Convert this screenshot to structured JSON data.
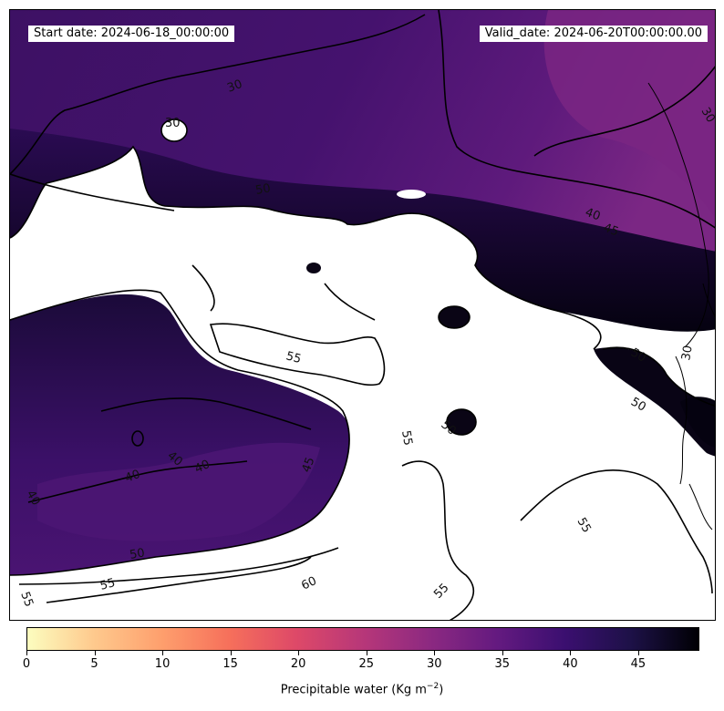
{
  "header": {
    "start_date": "Start date: 2024-06-18_00:00:00",
    "valid_date": "Valid_date: 2024-06-20T00:00:00.00"
  },
  "map": {
    "contour_labels": [
      "30",
      "30",
      "40",
      "45",
      "50",
      "55",
      "50",
      "50",
      "55",
      "50",
      "55",
      "45",
      "40",
      "40",
      "40",
      "40",
      "50",
      "55",
      "60",
      "55",
      "55",
      "30",
      "30"
    ]
  },
  "colorbar": {
    "min": 0,
    "max": 49.5,
    "ticks": [
      "0",
      "5",
      "10",
      "15",
      "20",
      "25",
      "30",
      "35",
      "40",
      "45"
    ],
    "title": "Precipitable water (Kg m",
    "title_sup": "−2",
    "title_end": ")",
    "colormap": "magma_r",
    "colors": [
      "#fcfdbf",
      "#fec98d",
      "#fe9f6d",
      "#f6705b",
      "#de4968",
      "#b73779",
      "#8c2981",
      "#641a80",
      "#3b0f70",
      "#1d1147",
      "#000004"
    ]
  }
}
